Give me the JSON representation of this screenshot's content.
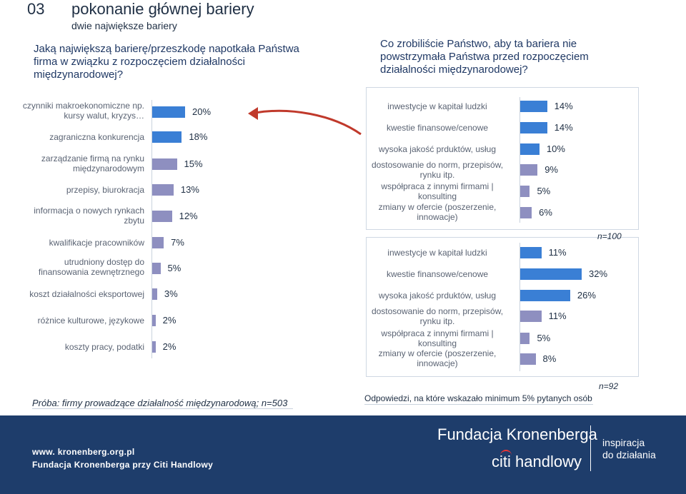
{
  "header": {
    "slide_number": "03",
    "title": "pokonanie głównej bariery",
    "subtitle": "dwie największe bariery",
    "question_left": "Jaką największą barierę/przeszkodę napotkała Państwa firma w związku z rozpoczęciem działalności międzynarodowej?",
    "question_right": "Co zrobiliście Państwo, aby ta bariera nie powstrzymała Państwa przed rozpoczęciem działalności międzynarodowej?"
  },
  "colors": {
    "bar_blue": "#3a7fd5",
    "bar_purple": "#8e8fc0",
    "footer_bg": "#1e3d6b"
  },
  "chart_data": [
    {
      "type": "bar",
      "orientation": "horizontal",
      "title": "",
      "categories": [
        "czynniki makroekonomiczne np. kursy walut, kryzys…",
        "zagraniczna konkurencja",
        "zarządzanie firmą na rynku międzynarodowym",
        "przepisy, biurokracja",
        "informacja o nowych rynkach zbytu",
        "kwalifikacje pracowników",
        "utrudniony dostęp do finansowania zewnętrznego",
        "koszt działalności eksportowej",
        "różnice kulturowe, językowe",
        "koszty pracy, podatki"
      ],
      "values": [
        20,
        18,
        15,
        13,
        12,
        7,
        5,
        3,
        2,
        2
      ],
      "labels": [
        "20%",
        "18%",
        "15%",
        "13%",
        "12%",
        "7%",
        "5%",
        "3%",
        "2%",
        "2%"
      ],
      "xlim": [
        0,
        20
      ]
    },
    {
      "type": "bar",
      "orientation": "horizontal",
      "categories": [
        "inwestycje w kapitał ludzki",
        "kwestie finansowe/cenowe",
        "wysoka jakość prduktów, usług",
        "dostosowanie do norm, przepisów, rynku itp.",
        "współpraca z innymi firmami | konsulting",
        "zmiany w ofercie (poszerzenie, innowacje)"
      ],
      "values": [
        14,
        14,
        10,
        9,
        5,
        6
      ],
      "labels": [
        "14%",
        "14%",
        "10%",
        "9%",
        "5%",
        "6%"
      ],
      "xlim": [
        0,
        32
      ]
    },
    {
      "type": "bar",
      "orientation": "horizontal",
      "note": "n=100",
      "categories": [
        "inwestycje w kapitał ludzki",
        "kwestie finansowe/cenowe",
        "wysoka jakość prduktów, usług",
        "dostosowanie do norm, przepisów, rynku itp.",
        "współpraca z innymi firmami | konsulting",
        "zmiany w ofercie (poszerzenie, innowacje)"
      ],
      "values": [
        11,
        32,
        26,
        11,
        5,
        8
      ],
      "labels": [
        "11%",
        "32%",
        "26%",
        "11%",
        "5%",
        "8%"
      ],
      "xlim": [
        0,
        32
      ]
    }
  ],
  "notes": {
    "n100": "n=100",
    "n92": "n=92",
    "sample": "Próba: firmy prowadzące działalność międzynarodową; n=503",
    "answers": "Odpowiedzi, na które wskazało minimum 5% pytanych osób"
  },
  "footer": {
    "url": "www. kronenberg.org.pl",
    "org": "Fundacja Kronenberga przy Citi Handlowy",
    "brand": "Fundacja Kronenberga",
    "citi": "citi handlowy",
    "tagline_1": "inspiracja",
    "tagline_2": "do działania"
  }
}
